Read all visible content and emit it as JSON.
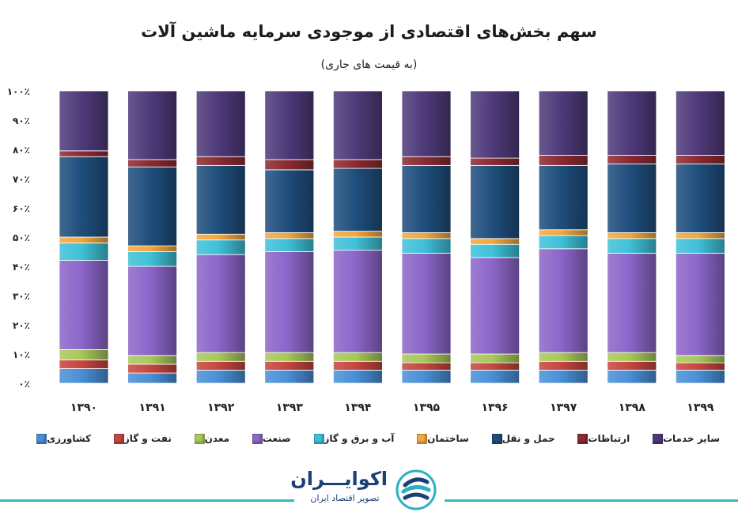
{
  "chart_data": {
    "type": "bar",
    "stacked": true,
    "title": "سهم بخش‌های اقتصادی از موجودی سرمایه ماشین آلات",
    "subtitle": "(به قیمت های جاری)",
    "categories": [
      "۱۳۹۰",
      "۱۳۹۱",
      "۱۳۹۲",
      "۱۳۹۳",
      "۱۳۹۴",
      "۱۳۹۵",
      "۱۳۹۶",
      "۱۳۹۷",
      "۱۳۹۸",
      "۱۳۹۹"
    ],
    "ylim": [
      0,
      100
    ],
    "y_ticks": [
      {
        "value": 0,
        "label": "۰٪"
      },
      {
        "value": 10,
        "label": "۱۰٪"
      },
      {
        "value": 20,
        "label": "۲۰٪"
      },
      {
        "value": 30,
        "label": "۳۰٪"
      },
      {
        "value": 40,
        "label": "۴۰٪"
      },
      {
        "value": 50,
        "label": "۵۰٪"
      },
      {
        "value": 60,
        "label": "۶۰٪"
      },
      {
        "value": 70,
        "label": "۷۰٪"
      },
      {
        "value": 80,
        "label": "۸۰٪"
      },
      {
        "value": 90,
        "label": "۹۰٪"
      },
      {
        "value": 100,
        "label": "۱۰۰٪"
      }
    ],
    "legend_position": "bottom",
    "series": [
      {
        "name": "کشاورزی",
        "color": "#4a8fd6",
        "values": [
          5.0,
          3.5,
          4.5,
          4.5,
          4.5,
          4.5,
          4.5,
          4.5,
          4.5,
          4.5
        ]
      },
      {
        "name": "نفت و گاز",
        "color": "#c8453f",
        "values": [
          3.0,
          3.0,
          3.0,
          3.0,
          3.0,
          2.5,
          2.5,
          3.0,
          3.0,
          2.5
        ]
      },
      {
        "name": "معدن",
        "color": "#a8c85a",
        "values": [
          3.5,
          3.0,
          3.0,
          3.0,
          3.0,
          3.0,
          3.0,
          3.0,
          3.0,
          2.5
        ]
      },
      {
        "name": "صنعت",
        "color": "#8c66c9",
        "values": [
          30.5,
          30.5,
          33.5,
          34.5,
          35.0,
          34.5,
          33.0,
          35.5,
          34.0,
          35.0
        ]
      },
      {
        "name": "آب و برق و گاز",
        "color": "#3fc1d8",
        "values": [
          6.0,
          5.0,
          5.0,
          4.5,
          4.5,
          5.0,
          4.5,
          4.5,
          5.0,
          5.0
        ]
      },
      {
        "name": "ساختمان",
        "color": "#f2a83d",
        "values": [
          2.0,
          2.0,
          2.0,
          2.0,
          2.0,
          2.0,
          2.0,
          2.0,
          2.0,
          2.0
        ]
      },
      {
        "name": "حمل و نقل",
        "color": "#1f4e7d",
        "values": [
          27.5,
          27.0,
          23.5,
          21.5,
          21.5,
          23.0,
          25.0,
          22.0,
          23.5,
          23.5
        ]
      },
      {
        "name": "ارتباطات",
        "color": "#8c2a32",
        "values": [
          2.0,
          2.5,
          3.0,
          3.5,
          3.0,
          3.0,
          2.5,
          3.5,
          3.0,
          3.0
        ]
      },
      {
        "name": "سایر خدمات",
        "color": "#4f3a7a",
        "values": [
          20.5,
          23.5,
          22.5,
          23.5,
          23.5,
          22.5,
          23.0,
          22.0,
          22.0,
          22.0
        ]
      }
    ]
  },
  "brand": {
    "name": "اکوایـــران",
    "tagline": "تصویر اقتصاد ایران"
  }
}
